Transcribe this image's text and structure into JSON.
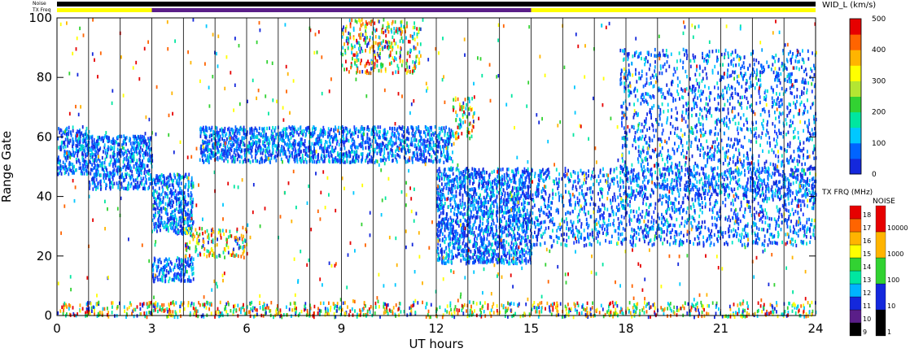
{
  "top_bar": {
    "noise_label": "Noise",
    "txfreq_label": "TX Freq",
    "segments": [
      {
        "from": 0,
        "to": 3,
        "color": "#ffff00"
      },
      {
        "from": 3,
        "to": 15,
        "color": "#5a1e88"
      },
      {
        "from": 15,
        "to": 24,
        "color": "#ffff00"
      }
    ]
  },
  "chart_data": {
    "type": "heatmap",
    "xlabel": "UT hours",
    "ylabel": "Range Gate",
    "xlim": [
      0,
      24
    ],
    "ylim": [
      0,
      100
    ],
    "xticks": [
      0,
      3,
      6,
      9,
      12,
      15,
      18,
      21,
      24
    ],
    "yticks": [
      0,
      20,
      40,
      60,
      80,
      100
    ],
    "scan_boundaries_hours": [
      1,
      2,
      3,
      4,
      5,
      6,
      7,
      8,
      9,
      10,
      11,
      12,
      13,
      14,
      15,
      16,
      17,
      18,
      19,
      20,
      21,
      22,
      23
    ],
    "echo_regions": [
      {
        "x0": 0.0,
        "x1": 1.0,
        "g0": 48,
        "g1": 64,
        "level": "low"
      },
      {
        "x0": 1.0,
        "x1": 3.0,
        "g0": 43,
        "g1": 61,
        "level": "low"
      },
      {
        "x0": 3.0,
        "x1": 4.3,
        "g0": 28,
        "g1": 48,
        "level": "low"
      },
      {
        "x0": 3.0,
        "x1": 4.3,
        "g0": 12,
        "g1": 20,
        "level": "low"
      },
      {
        "x0": 4.0,
        "x1": 6.0,
        "g0": 20,
        "g1": 30,
        "level": "mixed"
      },
      {
        "x0": 4.5,
        "x1": 12.5,
        "g0": 52,
        "g1": 64,
        "level": "low"
      },
      {
        "x0": 9.0,
        "x1": 11.5,
        "g0": 82,
        "g1": 100,
        "level": "mixed"
      },
      {
        "x0": 12.0,
        "x1": 15.0,
        "g0": 18,
        "g1": 50,
        "level": "low"
      },
      {
        "x0": 12.5,
        "x1": 13.2,
        "g0": 60,
        "g1": 74,
        "level": "mixed"
      },
      {
        "x0": 15.0,
        "x1": 24.0,
        "g0": 24,
        "g1": 50,
        "level": "low"
      },
      {
        "x0": 17.8,
        "x1": 24.0,
        "g0": 40,
        "g1": 90,
        "level": "low"
      },
      {
        "x0": 0.0,
        "x1": 24.0,
        "g0": 0,
        "g1": 5,
        "level": "mixed"
      }
    ],
    "colorbars": [
      {
        "title": "WID_L (km/s)",
        "min": 0,
        "max": 500,
        "ticks": [
          0,
          100,
          200,
          300,
          400,
          500
        ],
        "scale": "rainbow"
      },
      {
        "title": "TX FRQ (MHz)",
        "values": [
          9,
          10,
          11,
          12,
          13,
          14,
          15,
          16,
          17,
          18
        ],
        "colors": [
          "#000000",
          "#5a1e88",
          "#1428dc",
          "#00b4ff",
          "#00e6a0",
          "#32d232",
          "#ffff00",
          "#ffb400",
          "#ff6400",
          "#e60000"
        ]
      },
      {
        "title": "NOISE",
        "values": [
          1,
          10,
          100,
          1000,
          10000
        ],
        "colors": [
          "#000000",
          "#1428dc",
          "#32d232",
          "#ffb400",
          "#e60000"
        ]
      }
    ]
  }
}
